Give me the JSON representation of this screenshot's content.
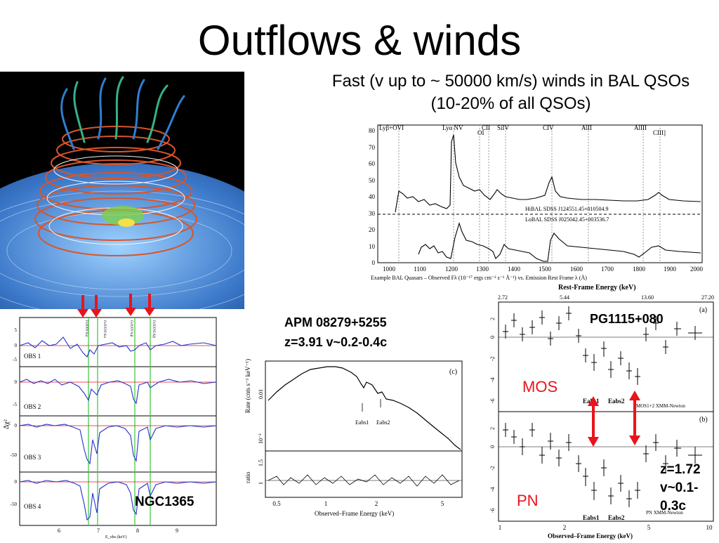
{
  "slide": {
    "title": "Outflows & winds",
    "bal_caption": "Fast (v up to ~ 50000 km/s) winds in BAL QSOs   (10-20% of all QSOs)"
  },
  "illustration": {
    "description_icon": "magnetic-wind-simulation-image",
    "colors": {
      "disk": "#3b78c9",
      "field_lines": "#d9552a",
      "jets": "#38b08a",
      "background": "#000000"
    }
  },
  "bal_spectrum": {
    "lines": [
      "Lyβ+OVI",
      "Lyα NV",
      "OI",
      "CII",
      "SiIV",
      "CIV",
      "AlII",
      "AlIII",
      "CIII]"
    ],
    "legend_hibal": "HiBAL SDSS J124551.45+010504.9",
    "legend_lobal": "LoBAL SDSS J025042.45+003536.7",
    "xlabel": "Example BAL Quasars – Observed Fλ (10⁻¹⁷ ergs cm⁻² s⁻¹ Å⁻¹) vs. Emission Rest Frame λ (Å)",
    "x_ticks": [
      "1000",
      "1100",
      "1200",
      "1300",
      "1400",
      "1500",
      "1600",
      "1700",
      "1800",
      "1900",
      "2000"
    ],
    "y_ticks": [
      "0",
      "10",
      "20",
      "30",
      "40",
      "50",
      "60",
      "70",
      "80"
    ]
  },
  "ngc1365": {
    "label": "NGC1365",
    "ylabel": "Δχ²",
    "xlabel": "E_obs (keV)",
    "x_ticks": [
      "6",
      "7",
      "8",
      "9"
    ],
    "obs": [
      "OBS 1",
      "OBS 2",
      "OBS 3",
      "OBS 4"
    ],
    "line_labels": [
      "FeXXV Kα",
      "FeXXVI Kα",
      "FeXXV Kβ",
      "FeXXVI Kβ"
    ],
    "y_ticks_1": [
      "5",
      "0",
      "-5"
    ],
    "y_ticks_2": [
      "0",
      "-5"
    ],
    "y_ticks_3": [
      "0",
      "-50"
    ],
    "y_ticks_4": [
      "0",
      "-50"
    ],
    "arrow_color": "#e8141c"
  },
  "apm": {
    "title_line1": "APM 08279+5255",
    "title_line2": "z=3.91  v~0.2-0.4c",
    "panel_label": "(c)",
    "ylabel_top": "Rate (cnts s⁻¹ keV⁻¹)",
    "ylabel_bottom": "ratio",
    "xlabel": "Observed–Frame Energy (keV)",
    "x_ticks": [
      "0.5",
      "1",
      "2",
      "5"
    ],
    "y_ticks_top": [
      "0.01",
      "10⁻³"
    ],
    "y_ticks_bottom": [
      "1.5",
      "1"
    ],
    "eabs1": "Eabs1",
    "eabs2": "Eabs2"
  },
  "pg1115": {
    "title": "PG1115+080",
    "mos_label": "MOS",
    "pn_label": "PN",
    "label_color": "#e8141c",
    "panel_a": "(a)",
    "panel_b": "(b)",
    "mos_caption": "MOS1+2 XMM-Newton",
    "pn_caption": "PN XMM-Newton",
    "eabs1": "Eabs1",
    "eabs2": "Eabs2",
    "z_line1": "z=1.72",
    "z_line2": "v~0.1-",
    "z_line3": "0.3c",
    "top_axis_label": "Rest-Frame Energy (keV)",
    "top_ticks": [
      "2.72",
      "5.44",
      "13.60",
      "27.20"
    ],
    "bottom_axis_label": "Observed–Frame Energy (keV)",
    "bottom_ticks": [
      "1",
      "2",
      "5",
      "10"
    ],
    "y_ticks_a": [
      "2",
      "0",
      "-2",
      "-4",
      "-6"
    ],
    "y_ticks_b": [
      "2",
      "0",
      "-2",
      "-4",
      "-6"
    ]
  }
}
